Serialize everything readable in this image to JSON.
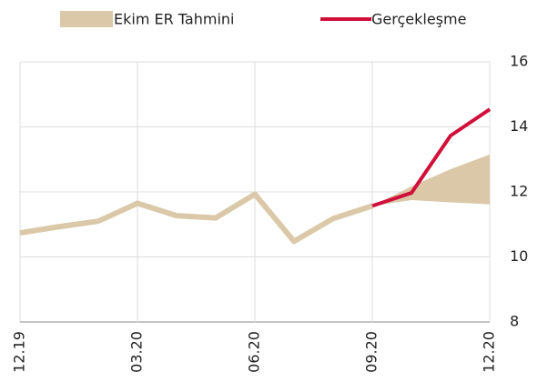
{
  "chart_data": {
    "type": "line",
    "categories": [
      "12.19",
      null,
      null,
      "03.20",
      null,
      null,
      "06.20",
      null,
      null,
      "09.20",
      null,
      null,
      "12.20"
    ],
    "series": [
      {
        "name": "Ekim ER Tahmini",
        "color": "#dac8a8",
        "values": [
          10.74,
          10.93,
          11.1,
          11.65,
          11.27,
          11.2,
          11.93,
          10.48,
          11.18,
          11.57,
          null,
          null,
          null
        ],
        "band_low": [
          null,
          null,
          null,
          null,
          null,
          null,
          null,
          null,
          null,
          11.57,
          11.75,
          11.68,
          11.62
        ],
        "band_high": [
          null,
          null,
          null,
          null,
          null,
          null,
          null,
          null,
          null,
          11.57,
          12.17,
          12.7,
          13.15
        ]
      },
      {
        "name": "Gerçekleşme",
        "color": "#d0103a",
        "values": [
          null,
          null,
          null,
          null,
          null,
          null,
          null,
          null,
          null,
          11.57,
          11.97,
          13.73,
          14.54
        ]
      }
    ],
    "ylim": [
      8,
      16
    ],
    "yticks": [
      8,
      10,
      12,
      14,
      16
    ],
    "grid": true
  }
}
